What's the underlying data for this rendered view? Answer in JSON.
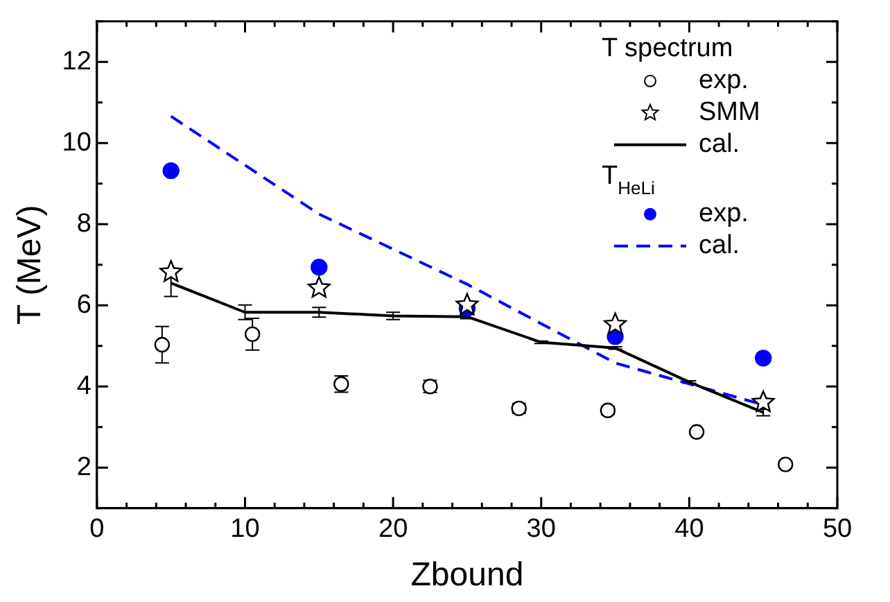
{
  "chart_data": {
    "type": "scatter",
    "xlabel": "Zbound",
    "ylabel": "T (MeV)",
    "xlim": [
      0,
      50
    ],
    "ylim": [
      1,
      13
    ],
    "xticks": [
      0,
      {
        "value": 2,
        "label": null
      },
      {
        "value": 4,
        "label": null
      },
      {
        "value": 6,
        "label": null
      },
      {
        "value": 8,
        "label": null
      },
      10,
      {
        "value": 12,
        "label": null
      },
      {
        "value": 14,
        "label": null
      },
      {
        "value": 16,
        "label": null
      },
      {
        "value": 18,
        "label": null
      },
      20,
      {
        "value": 22,
        "label": null
      },
      {
        "value": 24,
        "label": null
      },
      {
        "value": 26,
        "label": null
      },
      {
        "value": 28,
        "label": null
      },
      30,
      {
        "value": 32,
        "label": null
      },
      {
        "value": 34,
        "label": null
      },
      {
        "value": 36,
        "label": null
      },
      {
        "value": 38,
        "label": null
      },
      40,
      {
        "value": 42,
        "label": null
      },
      {
        "value": 44,
        "label": null
      },
      {
        "value": 46,
        "label": null
      },
      {
        "value": 48,
        "label": null
      },
      50
    ],
    "yticks": [
      {
        "value": 1,
        "label": null
      },
      2,
      {
        "value": 3,
        "label": null
      },
      4,
      {
        "value": 5,
        "label": null
      },
      6,
      {
        "value": 7,
        "label": null
      },
      8,
      {
        "value": 9,
        "label": null
      },
      10,
      {
        "value": 11,
        "label": null
      },
      12,
      {
        "value": 13,
        "label": null
      }
    ],
    "grid": false,
    "legend": "top right",
    "legend_title": "T spectrum",
    "annotations": [
      "T$_{HeLi}$"
    ],
    "series": [
      {
        "name": "exp.",
        "type": "scatter",
        "marker": "circle",
        "color": "#000000",
        "x": [
          4.4,
          10.5,
          16.5,
          22.5,
          28.5,
          34.5,
          40.5,
          46.5
        ],
        "values": [
          5.03,
          5.29,
          4.06,
          4.0,
          3.46,
          3.41,
          2.88,
          2.08
        ],
        "errors": [
          0.45,
          0.39,
          0.2,
          0.15,
          0.12,
          0.1,
          0.08,
          0.08
        ]
      },
      {
        "name": "SMM",
        "type": "scatter",
        "marker": "star",
        "color": "#000000",
        "x": [
          5,
          15,
          25,
          35,
          45
        ],
        "values": [
          6.82,
          6.43,
          6.01,
          5.53,
          3.61
        ]
      },
      {
        "name": "cal.",
        "type": "line",
        "marker": "none",
        "line_style": "solid",
        "color": "#000000",
        "x": [
          5,
          10,
          15,
          20,
          25,
          30,
          35,
          40,
          45
        ],
        "values": [
          6.55,
          5.83,
          5.83,
          5.74,
          5.72,
          5.09,
          4.95,
          4.11,
          3.36
        ],
        "errors": [
          0.33,
          0.18,
          0.12,
          0.09,
          0.05,
          0.03,
          0.03,
          0.03,
          0.08
        ]
      },
      {
        "name": "exp.",
        "type": "scatter",
        "marker": "circle",
        "color": "#0000ff",
        "x": [
          5,
          15,
          25,
          35,
          45
        ],
        "values": [
          9.32,
          6.94,
          5.93,
          5.23,
          4.7
        ]
      },
      {
        "name": "cal.",
        "type": "line",
        "marker": "none",
        "line_style": "dashed",
        "color": "#0000ff",
        "x": [
          5,
          15,
          25,
          35,
          45
        ],
        "values": [
          10.66,
          8.25,
          6.52,
          4.58,
          3.55
        ]
      }
    ]
  }
}
